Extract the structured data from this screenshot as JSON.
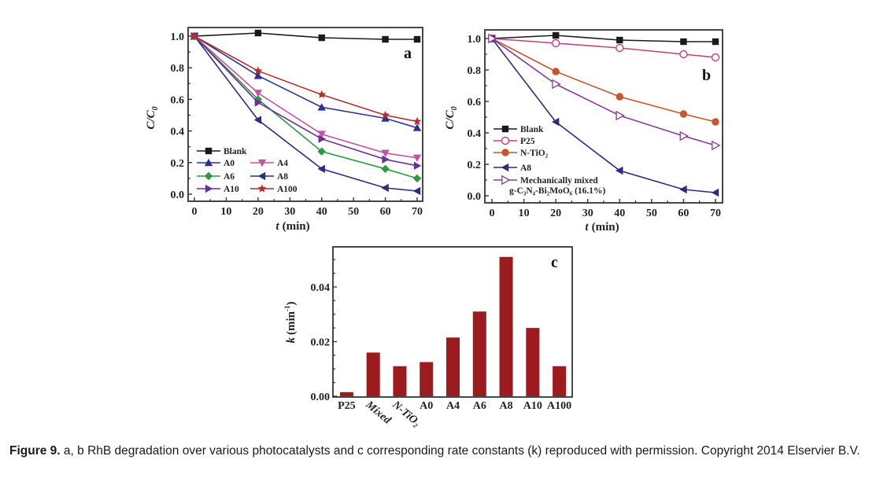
{
  "caption": {
    "label": "Figure 9.",
    "text": " a, b RhB degradation over various photocatalysts and c corresponding rate constants (k) reproduced with permission. Copyright 2014 Elservier B.V."
  },
  "chart_data": [
    {
      "id": "a",
      "type": "line",
      "panel_label": "a",
      "xlabel": "t (min)",
      "ylabel": "C/C0",
      "xlim": [
        0,
        70
      ],
      "ylim": [
        0,
        1.0
      ],
      "xticks": [
        0,
        10,
        20,
        30,
        40,
        50,
        60,
        70
      ],
      "yticks": [
        "0.0",
        "0.2",
        "0.4",
        "0.6",
        "0.8",
        "1.0"
      ],
      "legend_position": "bottom-left",
      "x": [
        0,
        20,
        40,
        60,
        70
      ],
      "series": [
        {
          "name": "Blank",
          "color": "#1a1a1a",
          "marker": "square",
          "values": [
            1.0,
            1.02,
            0.99,
            0.98,
            0.98
          ]
        },
        {
          "name": "A0",
          "color": "#2e3192",
          "marker": "triangle-up",
          "values": [
            1.0,
            0.75,
            0.55,
            0.48,
            0.42
          ]
        },
        {
          "name": "A4",
          "color": "#c2559e",
          "marker": "triangle-down",
          "values": [
            1.0,
            0.64,
            0.38,
            0.26,
            0.23
          ]
        },
        {
          "name": "A6",
          "color": "#2e9a3e",
          "marker": "diamond",
          "values": [
            1.0,
            0.6,
            0.27,
            0.16,
            0.1
          ]
        },
        {
          "name": "A8",
          "color": "#2e2c7e",
          "marker": "triangle-left",
          "values": [
            1.0,
            0.47,
            0.16,
            0.04,
            0.02
          ]
        },
        {
          "name": "A10",
          "color": "#6a2f9a",
          "marker": "triangle-right",
          "values": [
            1.0,
            0.58,
            0.35,
            0.22,
            0.18
          ]
        },
        {
          "name": "A100",
          "color": "#b0302e",
          "marker": "star",
          "values": [
            1.0,
            0.78,
            0.63,
            0.5,
            0.46
          ]
        }
      ]
    },
    {
      "id": "b",
      "type": "line",
      "panel_label": "b",
      "xlabel": "t (min)",
      "ylabel": "C/C0",
      "xlim": [
        0,
        70
      ],
      "ylim": [
        0,
        1.0
      ],
      "xticks": [
        0,
        10,
        20,
        30,
        40,
        50,
        60,
        70
      ],
      "yticks": [
        "0.0",
        "0.2",
        "0.4",
        "0.6",
        "0.8",
        "1.0"
      ],
      "legend_position": "bottom-left",
      "x": [
        0,
        20,
        40,
        60,
        70
      ],
      "series": [
        {
          "name": "Blank",
          "color": "#1a1a1a",
          "marker": "square",
          "values": [
            1.0,
            1.02,
            0.99,
            0.98,
            0.98
          ]
        },
        {
          "name": "P25",
          "color": "#c2417e",
          "marker": "circle-open",
          "values": [
            1.0,
            0.97,
            0.94,
            0.9,
            0.88
          ]
        },
        {
          "name": "N-TiO2",
          "color": "#c8552e",
          "marker": "circle",
          "values": [
            1.0,
            0.79,
            0.63,
            0.52,
            0.47
          ]
        },
        {
          "name": "A8",
          "color": "#2e2c7e",
          "marker": "triangle-left",
          "values": [
            1.0,
            0.47,
            0.16,
            0.04,
            0.02
          ]
        },
        {
          "name": "Mechanically mixed g-C3N4-Bi2MoO6 (16.1%)",
          "color": "#8a3a9a",
          "marker": "triangle-right-open",
          "values": [
            1.0,
            0.71,
            0.51,
            0.38,
            0.32
          ]
        }
      ],
      "legend_labels": {
        "n_tio2": "N-TiO₂",
        "mixed_line1": "Mechanically mixed",
        "mixed_line2": "g-C₃N₄-Bi₂MoO₆ (16.1%)"
      }
    },
    {
      "id": "c",
      "type": "bar",
      "panel_label": "c",
      "xlabel": "",
      "ylabel": "k (min⁻¹)",
      "ylim": [
        0,
        0.054
      ],
      "yticks": [
        "0.00",
        "0.02",
        "0.04"
      ],
      "categories": [
        "P25",
        "Mixed",
        "N-TiO₂",
        "A0",
        "A4",
        "A6",
        "A8",
        "A10",
        "A100"
      ],
      "values": [
        0.0015,
        0.016,
        0.011,
        0.0125,
        0.0215,
        0.031,
        0.051,
        0.025,
        0.011
      ],
      "color": "#9b1b1e"
    }
  ]
}
